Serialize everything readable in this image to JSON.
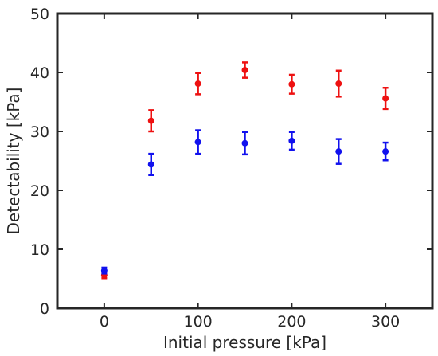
{
  "chart_data": {
    "type": "scatter",
    "title": "",
    "xlabel": "Initial pressure [kPa]",
    "ylabel": "Detectability [kPa]",
    "xlim": [
      -50,
      350
    ],
    "ylim": [
      0,
      50
    ],
    "xticks": [
      0,
      100,
      200,
      300
    ],
    "yticks": [
      0,
      10,
      20,
      30,
      40,
      50
    ],
    "grid": false,
    "legend": "none",
    "series": [
      {
        "color": "#ee1111",
        "x": [
          0,
          50,
          100,
          150,
          200,
          250,
          300
        ],
        "y": [
          5.6,
          31.8,
          38.1,
          40.4,
          38.0,
          38.1,
          35.6
        ],
        "err": [
          0.5,
          1.8,
          1.8,
          1.3,
          1.6,
          2.2,
          1.8
        ]
      },
      {
        "color": "#1111ee",
        "x": [
          0,
          50,
          100,
          150,
          200,
          250,
          300
        ],
        "y": [
          6.4,
          24.4,
          28.2,
          28.0,
          28.4,
          26.6,
          26.6
        ],
        "err": [
          0.5,
          1.8,
          2.0,
          1.9,
          1.5,
          2.1,
          1.5
        ]
      }
    ]
  }
}
